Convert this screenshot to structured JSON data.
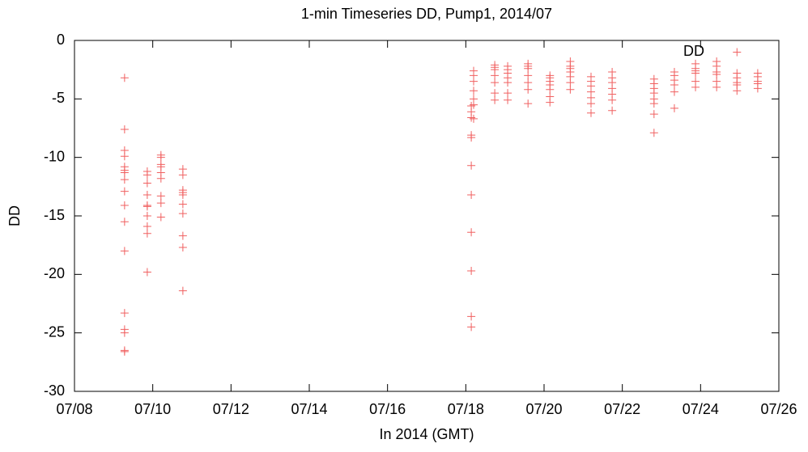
{
  "chart_data": {
    "type": "scatter",
    "title": "1-min Timeseries DD, Pump1, 2014/07",
    "xlabel": "In 2014 (GMT)",
    "ylabel": "DD",
    "xlim": [
      8,
      26
    ],
    "xticks": [
      {
        "value": 8,
        "label": "07/08"
      },
      {
        "value": 10,
        "label": "07/10"
      },
      {
        "value": 12,
        "label": "07/12"
      },
      {
        "value": 14,
        "label": "07/14"
      },
      {
        "value": 16,
        "label": "07/16"
      },
      {
        "value": 18,
        "label": "07/18"
      },
      {
        "value": 20,
        "label": "07/20"
      },
      {
        "value": 22,
        "label": "07/22"
      },
      {
        "value": 24,
        "label": "07/24"
      },
      {
        "value": 26,
        "label": "07/26"
      }
    ],
    "ylim": [
      -30,
      0
    ],
    "yticks": [
      0,
      -5,
      -10,
      -15,
      -20,
      -25,
      -30
    ],
    "legend": "top-right",
    "series": [
      {
        "name": "DD",
        "color": "#f06060",
        "x": [
          9.28,
          9.28,
          9.28,
          9.28,
          9.28,
          9.28,
          9.28,
          9.28,
          9.28,
          9.28,
          9.28,
          9.28,
          9.28,
          9.28,
          9.28,
          9.28,
          9.28,
          9.86,
          9.86,
          9.86,
          9.86,
          9.86,
          9.86,
          9.86,
          9.86,
          9.86,
          9.86,
          10.21,
          10.21,
          10.21,
          10.21,
          10.21,
          10.21,
          10.21,
          10.21,
          10.21,
          10.77,
          10.77,
          10.77,
          10.77,
          10.77,
          10.77,
          10.77,
          10.77,
          10.77,
          10.77,
          18.14,
          18.14,
          18.14,
          18.14,
          18.14,
          18.14,
          18.14,
          18.14,
          18.14,
          18.14,
          18.14,
          18.2,
          18.2,
          18.2,
          18.2,
          18.2,
          18.2,
          18.2,
          18.74,
          18.74,
          18.74,
          18.74,
          18.74,
          18.74,
          18.74,
          19.07,
          19.07,
          19.07,
          19.07,
          19.07,
          19.07,
          19.07,
          19.59,
          19.59,
          19.59,
          19.59,
          19.59,
          19.59,
          19.59,
          20.15,
          20.15,
          20.15,
          20.15,
          20.15,
          20.15,
          20.15,
          20.67,
          20.67,
          20.67,
          20.67,
          20.67,
          20.67,
          20.67,
          21.2,
          21.2,
          21.2,
          21.2,
          21.2,
          21.2,
          21.2,
          21.74,
          21.74,
          21.74,
          21.74,
          21.74,
          21.74,
          21.74,
          22.81,
          22.81,
          22.81,
          22.81,
          22.81,
          22.81,
          22.81,
          22.81,
          23.33,
          23.33,
          23.33,
          23.33,
          23.33,
          23.33,
          23.87,
          23.87,
          23.87,
          23.87,
          23.87,
          23.87,
          24.41,
          24.41,
          24.41,
          24.41,
          24.41,
          24.41,
          24.93,
          24.93,
          24.93,
          24.93,
          24.93,
          24.93,
          25.46,
          25.46,
          25.46,
          25.46,
          25.46
        ],
        "values": [
          -3.2,
          -7.6,
          -9.4,
          -9.9,
          -10.8,
          -11.1,
          -11.3,
          -11.9,
          -12.9,
          -14.1,
          -15.5,
          -18.0,
          -23.3,
          -24.7,
          -25.0,
          -26.5,
          -26.6,
          -11.2,
          -11.5,
          -12.2,
          -13.2,
          -14.1,
          -14.2,
          -15.0,
          -15.9,
          -16.5,
          -19.8,
          -9.8,
          -10.0,
          -10.6,
          -10.8,
          -11.3,
          -11.8,
          -13.3,
          -13.9,
          -15.1,
          -11.0,
          -11.5,
          -12.8,
          -13.0,
          -13.2,
          -14.0,
          -14.8,
          -16.7,
          -17.7,
          -21.4,
          -5.6,
          -6.1,
          -6.6,
          -8.1,
          -8.3,
          -10.7,
          -13.2,
          -16.4,
          -19.7,
          -23.6,
          -24.5,
          -2.6,
          -3.0,
          -3.5,
          -4.3,
          -5.0,
          -5.5,
          -6.7,
          -2.1,
          -2.3,
          -2.5,
          -3.0,
          -3.6,
          -4.5,
          -5.1,
          -2.2,
          -2.5,
          -2.8,
          -3.2,
          -3.6,
          -4.5,
          -5.1,
          -2.0,
          -2.2,
          -2.4,
          -3.0,
          -3.6,
          -4.2,
          -5.4,
          -3.0,
          -3.2,
          -3.5,
          -3.8,
          -4.2,
          -4.8,
          -5.3,
          -1.8,
          -2.2,
          -2.4,
          -2.7,
          -3.1,
          -3.6,
          -4.2,
          -3.1,
          -3.5,
          -3.9,
          -4.4,
          -4.9,
          -5.4,
          -6.2,
          -2.7,
          -3.2,
          -3.6,
          -4.1,
          -4.6,
          -5.1,
          -6.0,
          -3.3,
          -3.7,
          -4.1,
          -4.5,
          -5.0,
          -5.4,
          -6.3,
          -7.9,
          -2.7,
          -3.0,
          -3.4,
          -3.8,
          -4.4,
          -5.8,
          -2.0,
          -2.4,
          -2.6,
          -2.8,
          -3.5,
          -4.0,
          -1.8,
          -2.2,
          -2.7,
          -2.9,
          -3.5,
          -4.0,
          -1.0,
          -2.8,
          -3.2,
          -3.6,
          -3.8,
          -4.3,
          -2.8,
          -3.1,
          -3.5,
          -3.7,
          -4.1
        ]
      }
    ]
  }
}
